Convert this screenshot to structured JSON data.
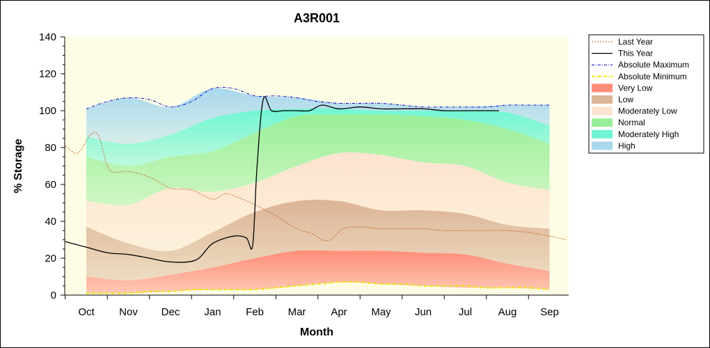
{
  "chart_data": {
    "type": "area",
    "title": "A3R001",
    "xlabel": "Month",
    "ylabel": "% Storage",
    "ylim": [
      0,
      140
    ],
    "yticks": [
      "0",
      "20",
      "40",
      "60",
      "80",
      "100",
      "120",
      "140"
    ],
    "categories": [
      "Oct",
      "Nov",
      "Dec",
      "Jan",
      "Feb",
      "Mar",
      "Apr",
      "May",
      "Jun",
      "Jul",
      "Aug",
      "Sep"
    ],
    "legend_position": "right",
    "bands": [
      {
        "name": "Very Low",
        "color": "#ff8c78",
        "lower": [
          1,
          1,
          2,
          3,
          3,
          5,
          7,
          6,
          5,
          4,
          4,
          3
        ],
        "upper": [
          10,
          8,
          11,
          15,
          20,
          24,
          24,
          24,
          23,
          22,
          17,
          13
        ]
      },
      {
        "name": "Low",
        "color": "#dcb496",
        "lower": [
          10,
          8,
          11,
          15,
          20,
          24,
          24,
          24,
          23,
          22,
          17,
          13
        ],
        "upper": [
          37,
          28,
          24,
          34,
          45,
          51,
          51,
          46,
          46,
          44,
          38,
          36
        ]
      },
      {
        "name": "Moderately Low",
        "color": "#fde3cf",
        "lower": [
          37,
          28,
          24,
          34,
          45,
          51,
          51,
          46,
          46,
          44,
          38,
          36
        ],
        "upper": [
          51,
          49,
          58,
          56,
          61,
          70,
          77,
          76,
          72,
          70,
          61,
          57
        ]
      },
      {
        "name": "Normal",
        "color": "#98ee98",
        "lower": [
          51,
          49,
          58,
          56,
          61,
          70,
          77,
          76,
          72,
          70,
          61,
          57
        ],
        "upper": [
          75,
          70,
          75,
          78,
          88,
          97,
          98,
          98,
          97,
          95,
          90,
          82
        ]
      },
      {
        "name": "Moderately High",
        "color": "#6ff5d2",
        "lower": [
          75,
          70,
          75,
          78,
          88,
          97,
          98,
          98,
          97,
          95,
          90,
          82
        ],
        "upper": [
          86,
          82,
          87,
          96,
          100,
          101,
          101,
          100,
          100,
          100,
          99,
          92
        ]
      },
      {
        "name": "High",
        "color": "#a9d8ee",
        "lower": [
          86,
          82,
          87,
          96,
          100,
          101,
          101,
          100,
          100,
          100,
          99,
          92
        ],
        "upper": [
          101,
          107,
          102,
          112,
          108,
          107,
          104,
          104,
          102,
          102,
          103,
          103
        ]
      }
    ],
    "series": [
      {
        "name": "Last Year",
        "color": "#c0601f",
        "style": "dotted",
        "x": [
          -0.5,
          -0.2,
          0.1,
          0.3,
          0.55,
          1.0,
          1.5,
          2.0,
          2.5,
          3.0,
          3.3,
          3.6,
          4.0,
          4.5,
          5.0,
          5.4,
          5.6,
          5.8,
          6.1,
          6.5,
          7.0,
          7.5,
          8.0,
          8.5,
          9.0,
          9.5,
          10.0,
          10.5,
          11.0,
          11.4
        ],
        "y": [
          81,
          77,
          87,
          86,
          68,
          67,
          64,
          58,
          57,
          52,
          55,
          53,
          49,
          43,
          36,
          33,
          30,
          30,
          36,
          37,
          36,
          36,
          36,
          35,
          35,
          35,
          35,
          34,
          32,
          30
        ]
      },
      {
        "name": "This Year",
        "color": "#000000",
        "style": "solid",
        "x": [
          -0.5,
          0.0,
          0.5,
          1.0,
          1.5,
          2.0,
          2.6,
          3.0,
          3.5,
          3.8,
          3.95,
          4.05,
          4.2,
          4.4,
          4.7,
          5.0,
          5.3,
          5.6,
          6.0,
          6.5,
          7.0,
          7.5,
          8.0,
          8.5,
          9.0,
          9.5,
          9.8
        ],
        "y": [
          29,
          26,
          23,
          22,
          20,
          18,
          19,
          28,
          32,
          31,
          27,
          68,
          106,
          100,
          100,
          100,
          100,
          103,
          101,
          102,
          101,
          101,
          101,
          100,
          100,
          100,
          100
        ]
      },
      {
        "name": "Absolute Maximum",
        "color": "#0000c8",
        "style": "dashdot",
        "x": [
          0,
          0.5,
          1,
          1.5,
          2,
          2.5,
          3,
          3.5,
          4,
          4.5,
          5,
          5.5,
          6,
          6.5,
          7,
          7.5,
          8,
          8.5,
          9,
          9.5,
          10,
          10.5,
          11
        ],
        "y": [
          101,
          105,
          107,
          106,
          102,
          105,
          112,
          112,
          108,
          108,
          107,
          105,
          104,
          104,
          104,
          103,
          102,
          102,
          102,
          102,
          103,
          103,
          103
        ]
      },
      {
        "name": "Absolute Minimum",
        "color": "#e6e600",
        "style": "dashdot",
        "x": [
          0,
          0.5,
          1,
          1.5,
          2,
          2.5,
          3,
          3.5,
          4,
          4.5,
          5,
          5.5,
          6,
          6.5,
          7,
          7.5,
          8,
          8.5,
          9,
          9.5,
          10,
          10.5,
          11
        ],
        "y": [
          1,
          1,
          1,
          2,
          2,
          3,
          3,
          3,
          3,
          4,
          5,
          6,
          7,
          7,
          6,
          6,
          5,
          5,
          5,
          4,
          4,
          4,
          3
        ]
      }
    ],
    "legend": [
      {
        "label": "Last Year",
        "kind": "line",
        "color": "#c0601f",
        "dash": "2,2",
        "width": 1
      },
      {
        "label": "This Year",
        "kind": "line",
        "color": "#000000",
        "dash": "",
        "width": 1.3
      },
      {
        "label": "Absolute Maximum",
        "kind": "line",
        "color": "#0000c8",
        "dash": "4,2,1,2",
        "width": 1
      },
      {
        "label": "Absolute Minimum",
        "kind": "line",
        "color": "#e6e600",
        "dash": "4,2,1,2",
        "width": 2
      },
      {
        "label": "Very Low",
        "kind": "swatch",
        "color": "#ff8c78"
      },
      {
        "label": "Low",
        "kind": "swatch",
        "color": "#dcb496"
      },
      {
        "label": "Moderately Low",
        "kind": "swatch",
        "color": "#fde3cf"
      },
      {
        "label": "Normal",
        "kind": "swatch",
        "color": "#98ee98"
      },
      {
        "label": "Moderately High",
        "kind": "swatch",
        "color": "#6ff5d2"
      },
      {
        "label": "High",
        "kind": "swatch",
        "color": "#a9d8ee"
      }
    ],
    "plot_background": "#fdfde6"
  }
}
